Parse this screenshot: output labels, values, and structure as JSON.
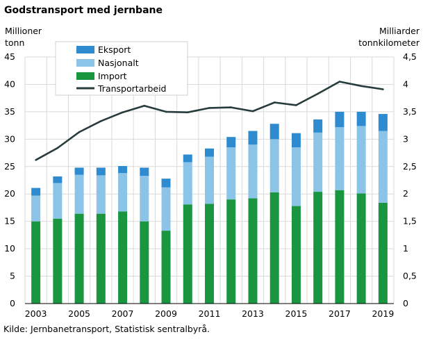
{
  "chart_data": {
    "type": "bar",
    "title": "Godstransport med jernbane",
    "left_axis_label": [
      "Millioner",
      "tonn"
    ],
    "right_axis_label": [
      "Milliarder",
      "tonnkilometer"
    ],
    "source": "Kilde: Jernbanetransport,  Statistisk sentralbyrå.",
    "years": [
      2003,
      2004,
      2005,
      2006,
      2007,
      2008,
      2009,
      2010,
      2011,
      2012,
      2013,
      2014,
      2015,
      2016,
      2017,
      2018,
      2019
    ],
    "x_tick_labels": [
      "2003",
      "2005",
      "2007",
      "2009",
      "2011",
      "2013",
      "2015",
      "2017",
      "2019"
    ],
    "x_tick_years": [
      2003,
      2005,
      2007,
      2009,
      2011,
      2013,
      2015,
      2017,
      2019
    ],
    "stacked_series": [
      {
        "name": "Import",
        "color": "#1a9641",
        "values": [
          15.0,
          15.5,
          16.4,
          16.4,
          16.8,
          15.0,
          13.3,
          18.1,
          18.2,
          19.0,
          19.2,
          20.3,
          17.8,
          20.4,
          20.7,
          20.1,
          18.4
        ]
      },
      {
        "name": "Nasjonalt",
        "color": "#8cc4e8",
        "values": [
          4.7,
          6.5,
          7.1,
          7.0,
          7.0,
          8.3,
          7.9,
          7.7,
          8.6,
          9.5,
          9.8,
          9.7,
          10.7,
          10.8,
          11.5,
          12.3,
          13.1
        ]
      },
      {
        "name": "Eksport",
        "color": "#2e8bd0",
        "values": [
          1.4,
          1.2,
          1.3,
          1.4,
          1.3,
          1.5,
          1.6,
          1.4,
          1.5,
          1.9,
          2.5,
          2.8,
          2.6,
          2.4,
          2.8,
          2.6,
          3.1
        ]
      }
    ],
    "line_series": {
      "name": "Transportarbeid",
      "color": "#263c3c",
      "axis": "right",
      "values": [
        2.62,
        2.84,
        3.13,
        3.33,
        3.49,
        3.61,
        3.5,
        3.49,
        3.57,
        3.58,
        3.51,
        3.67,
        3.62,
        3.83,
        4.05,
        3.97,
        3.91
      ]
    },
    "legend": [
      "Eksport",
      "Nasjonalt",
      "Import",
      "Transportarbeid"
    ],
    "y_left": {
      "min": 0,
      "max": 45,
      "ticks": [
        "0",
        "5",
        "10",
        "15",
        "20",
        "25",
        "30",
        "35",
        "40",
        "45"
      ]
    },
    "y_right": {
      "min": 0,
      "max": 4.5,
      "ticks": [
        "0",
        "0,5",
        "1",
        "1,5",
        "2",
        "2,5",
        "3",
        "3,5",
        "4",
        "4,5"
      ]
    },
    "grid": true,
    "legend_placement": "top-left"
  }
}
